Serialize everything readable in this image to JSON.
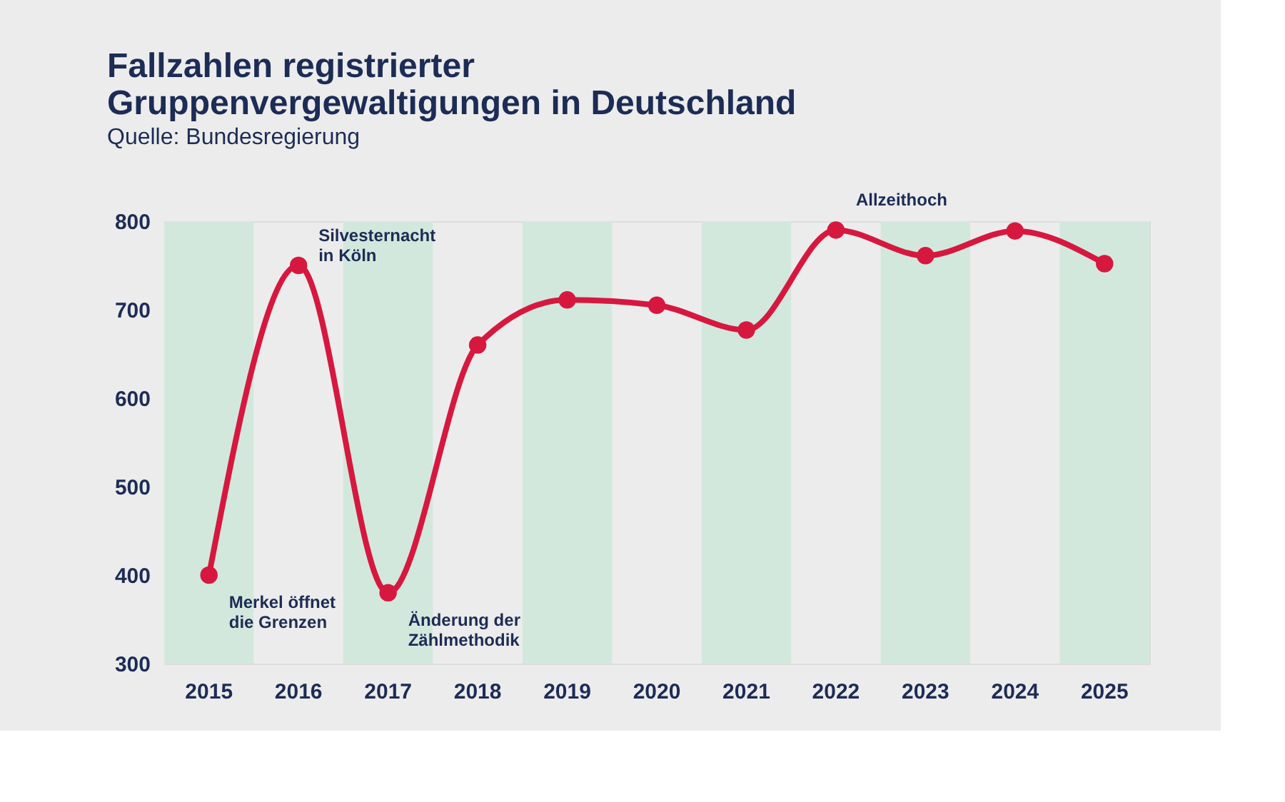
{
  "chart_data": {
    "type": "line",
    "title": "Fallzahlen registrierter\nGruppenvergewaltigungen in Deutschland",
    "subtitle": "Quelle: Bundesregierung",
    "categories": [
      "2015",
      "2016",
      "2017",
      "2018",
      "2019",
      "2020",
      "2021",
      "2022",
      "2023",
      "2024",
      "2025"
    ],
    "series": [
      {
        "color": "#d6183f",
        "values": [
          400,
          750,
          380,
          660,
          711,
          705,
          677,
          790,
          761,
          789,
          752
        ]
      }
    ],
    "ylim": [
      300,
      800
    ],
    "yticks": [
      300,
      400,
      500,
      600,
      700,
      800
    ],
    "grid": false,
    "marker": "circle",
    "line_style": "solid",
    "bands": [
      {
        "axis": "x",
        "from": "2015",
        "to": "2015",
        "color": "#d3e8dd"
      },
      {
        "axis": "x",
        "from": "2017",
        "to": "2017",
        "color": "#d3e8dd"
      },
      {
        "axis": "x",
        "from": "2019",
        "to": "2019",
        "color": "#d3e8dd"
      },
      {
        "axis": "x",
        "from": "2021",
        "to": "2021",
        "color": "#d3e8dd"
      },
      {
        "axis": "x",
        "from": "2023",
        "to": "2023",
        "color": "#d3e8dd"
      },
      {
        "axis": "x",
        "from": "2025",
        "to": "2025",
        "color": "#d3e8dd"
      }
    ],
    "annotations": [
      {
        "text": "Merkel öffnet\ndie Grenzen",
        "x": "2015",
        "y": 400
      },
      {
        "text": "Silvesternacht\nin Köln",
        "x": "2016",
        "y": 750
      },
      {
        "text": "Änderung der\nZählmethodik",
        "x": "2017",
        "y": 380
      },
      {
        "text": "Allzeithoch",
        "x": "2022",
        "y": 790
      }
    ]
  }
}
